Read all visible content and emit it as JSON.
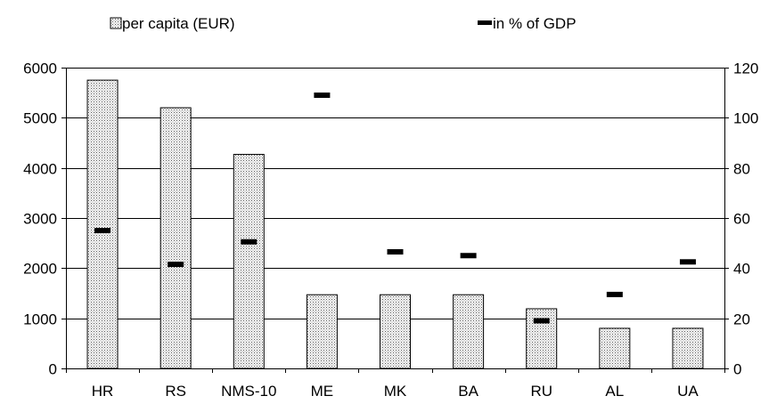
{
  "chart_data": {
    "type": "bar",
    "categories": [
      "HR",
      "RS",
      "NMS-10",
      "ME",
      "MK",
      "BA",
      "RU",
      "AL",
      "UA"
    ],
    "series": [
      {
        "name": "per capita (EUR)",
        "type": "bar",
        "axis": "left",
        "values": [
          5750,
          5200,
          4270,
          1470,
          1470,
          1470,
          1190,
          800,
          800
        ]
      },
      {
        "name": "in % of GDP",
        "type": "marker",
        "axis": "right",
        "values": [
          55,
          41.5,
          50.5,
          109,
          46.5,
          45,
          19,
          29.5,
          42.5
        ]
      }
    ],
    "y_left": {
      "min": 0,
      "max": 6000,
      "ticks": [
        0,
        1000,
        2000,
        3000,
        4000,
        5000,
        6000
      ]
    },
    "y_right": {
      "min": 0,
      "max": 120,
      "ticks": [
        0,
        20,
        40,
        60,
        80,
        100,
        120
      ]
    },
    "legend_position": "top",
    "grid": "horizontal",
    "colors": {
      "bar_fill": "#ffffff",
      "bar_dots": "#555555",
      "marker": "#000000",
      "grid": "#000000"
    },
    "bar_pattern": "dotted"
  }
}
